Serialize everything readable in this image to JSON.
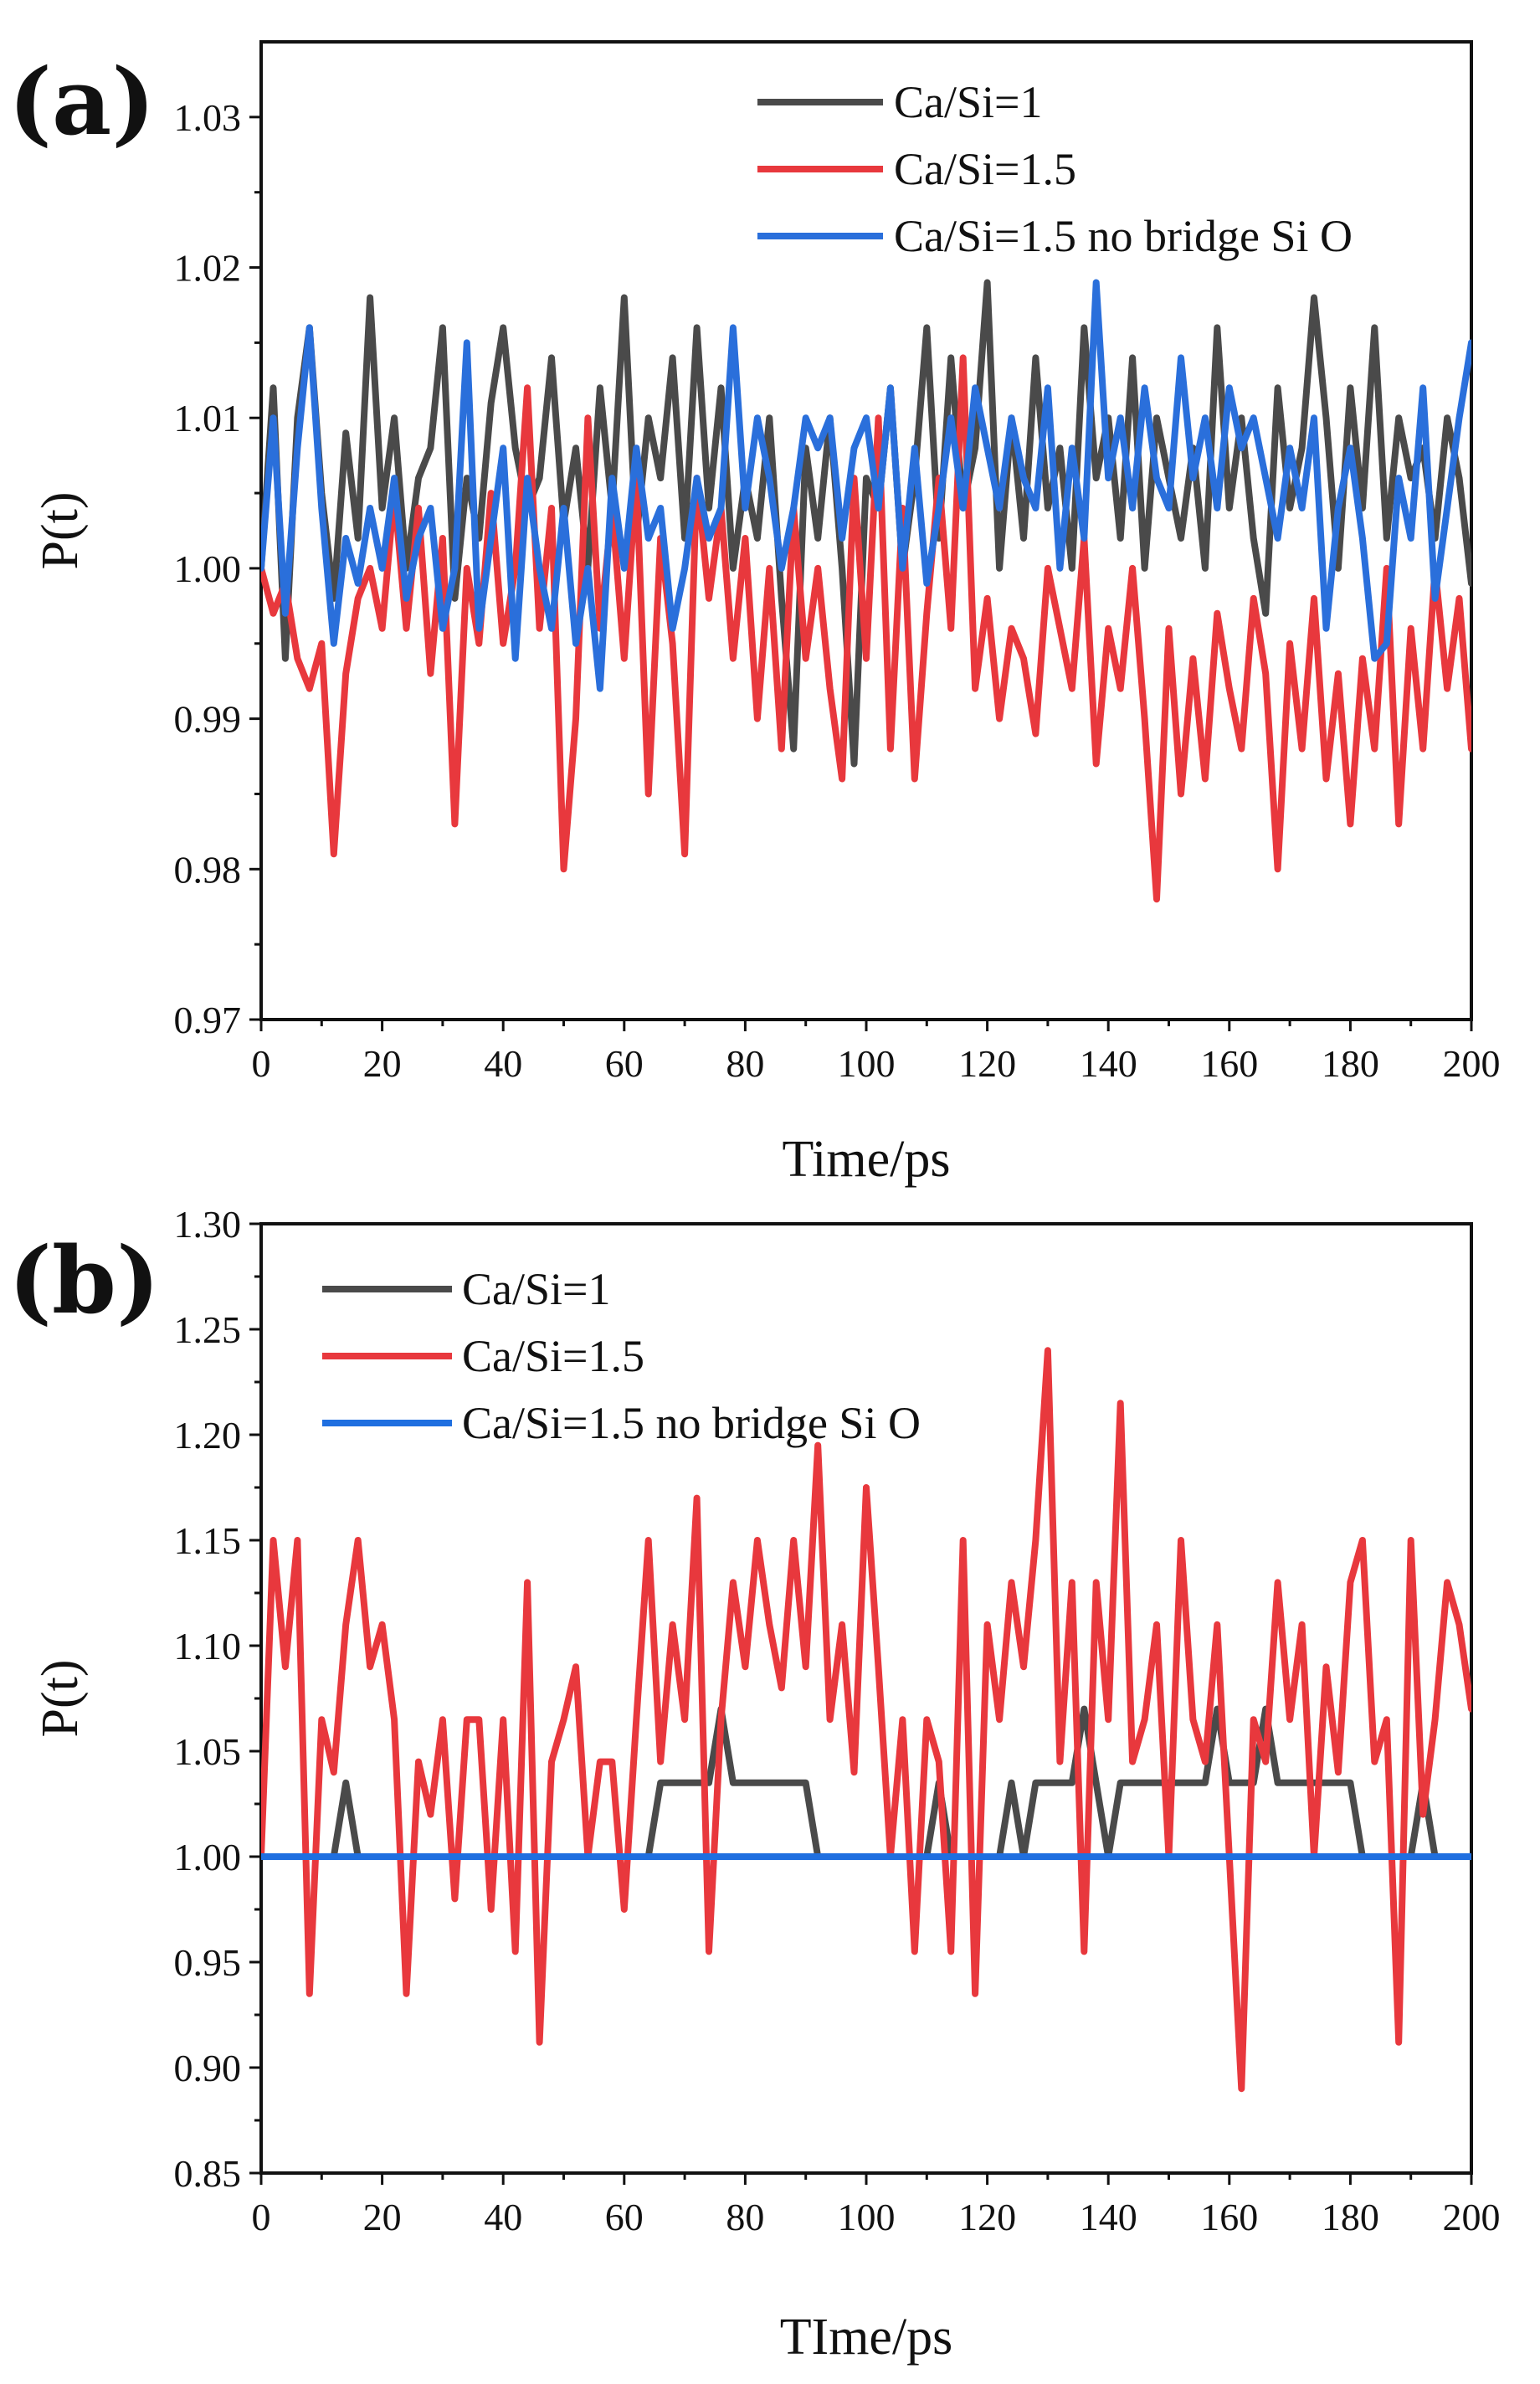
{
  "chart_data": [
    {
      "type": "line",
      "panel_label": "(a)",
      "xlabel": "Time/ps",
      "ylabel": "P(t)",
      "xlim": [
        0,
        200
      ],
      "ylim": [
        0.97,
        1.035
      ],
      "xticks": [
        0,
        20,
        40,
        60,
        80,
        100,
        120,
        140,
        160,
        180,
        200
      ],
      "yticks": [
        0.97,
        0.98,
        0.99,
        1.0,
        1.01,
        1.02,
        1.03
      ],
      "ytick_labels": [
        "0.97",
        "0.98",
        "0.99",
        "1.00",
        "1.01",
        "1.02",
        "1.03"
      ],
      "legend_position": "top-right",
      "x": [
        0,
        2,
        4,
        6,
        8,
        10,
        12,
        14,
        16,
        18,
        20,
        22,
        24,
        26,
        28,
        30,
        32,
        34,
        36,
        38,
        40,
        42,
        44,
        46,
        48,
        50,
        52,
        54,
        56,
        58,
        60,
        62,
        64,
        66,
        68,
        70,
        72,
        74,
        76,
        78,
        80,
        82,
        84,
        86,
        88,
        90,
        92,
        94,
        96,
        98,
        100,
        102,
        104,
        106,
        108,
        110,
        112,
        114,
        116,
        118,
        120,
        122,
        124,
        126,
        128,
        130,
        132,
        134,
        136,
        138,
        140,
        142,
        144,
        146,
        148,
        150,
        152,
        154,
        156,
        158,
        160,
        162,
        164,
        166,
        168,
        170,
        172,
        174,
        176,
        178,
        180,
        182,
        184,
        186,
        188,
        190,
        192,
        194,
        196,
        198,
        200
      ],
      "series": [
        {
          "name": "Ca/Si=1",
          "color": "#4a4a4a",
          "values": [
            1.0,
            1.012,
            0.994,
            1.01,
            1.016,
            1.005,
            0.998,
            1.009,
            1.002,
            1.018,
            1.004,
            1.01,
            1.0,
            1.006,
            1.008,
            1.016,
            0.998,
            1.006,
            1.002,
            1.011,
            1.016,
            1.008,
            1.004,
            1.006,
            1.014,
            1.003,
            1.008,
            1.0,
            1.012,
            1.004,
            1.018,
            1.002,
            1.01,
            1.006,
            1.014,
            1.002,
            1.016,
            1.004,
            1.012,
            1.0,
            1.006,
            1.002,
            1.01,
            0.998,
            0.988,
            1.008,
            1.002,
            1.01,
            1.0,
            0.987,
            1.006,
            1.004,
            1.012,
            1.0,
            1.006,
            1.016,
            1.002,
            1.014,
            1.004,
            1.008,
            1.019,
            1.0,
            1.01,
            1.002,
            1.014,
            1.004,
            1.008,
            1.0,
            1.016,
            1.006,
            1.01,
            1.002,
            1.014,
            1.0,
            1.01,
            1.006,
            1.002,
            1.008,
            1.0,
            1.016,
            1.004,
            1.01,
            1.002,
            0.997,
            1.012,
            1.004,
            1.008,
            1.018,
            1.01,
            1.0,
            1.012,
            1.004,
            1.016,
            1.002,
            1.01,
            1.006,
            1.008,
            1.002,
            1.01,
            1.006,
            0.999
          ]
        },
        {
          "name": "Ca/Si=1.5",
          "color": "#e8383d",
          "values": [
            1.0,
            0.997,
            0.999,
            0.994,
            0.992,
            0.995,
            0.981,
            0.993,
            0.998,
            1.0,
            0.996,
            1.005,
            0.996,
            1.004,
            0.993,
            1.002,
            0.983,
            1.0,
            0.995,
            1.005,
            0.995,
            1.0,
            1.012,
            0.996,
            1.004,
            0.98,
            0.99,
            1.01,
            0.996,
            1.004,
            0.994,
            1.006,
            0.985,
            1.002,
            0.995,
            0.981,
            1.006,
            0.998,
            1.004,
            0.994,
            1.002,
            0.99,
            1.0,
            0.988,
            1.004,
            0.994,
            1.0,
            0.992,
            0.986,
            1.006,
            0.994,
            1.01,
            0.988,
            1.004,
            0.986,
            0.997,
            1.006,
            0.996,
            1.014,
            0.992,
            0.998,
            0.99,
            0.996,
            0.994,
            0.989,
            1.0,
            0.996,
            0.992,
            1.002,
            0.987,
            0.996,
            0.992,
            1.0,
            0.99,
            0.978,
            0.996,
            0.985,
            0.994,
            0.986,
            0.997,
            0.992,
            0.988,
            0.998,
            0.993,
            0.98,
            0.995,
            0.988,
            0.998,
            0.986,
            0.993,
            0.983,
            0.994,
            0.988,
            1.0,
            0.983,
            0.996,
            0.988,
            1.0,
            0.992,
            0.998,
            0.988
          ]
        },
        {
          "name": "Ca/Si=1.5 no bridge Si O",
          "color": "#2a6fdb",
          "values": [
            1.0,
            1.01,
            0.997,
            1.008,
            1.016,
            1.004,
            0.995,
            1.002,
            0.999,
            1.004,
            1.0,
            1.006,
            0.998,
            1.002,
            1.004,
            0.996,
            1.0,
            1.015,
            0.996,
            1.002,
            1.008,
            0.994,
            1.006,
            1.0,
            0.996,
            1.004,
            0.995,
            1.0,
            0.992,
            1.006,
            1.0,
            1.008,
            1.002,
            1.004,
            0.996,
            1.0,
            1.006,
            1.002,
            1.004,
            1.016,
            1.004,
            1.01,
            1.006,
            1.0,
            1.004,
            1.01,
            1.008,
            1.01,
            1.002,
            1.008,
            1.01,
            1.004,
            1.012,
            1.0,
            1.008,
            0.999,
            1.004,
            1.01,
            1.004,
            1.012,
            1.008,
            1.004,
            1.01,
            1.006,
            1.004,
            1.012,
            1.0,
            1.008,
            1.002,
            1.019,
            1.006,
            1.01,
            1.004,
            1.012,
            1.006,
            1.004,
            1.014,
            1.006,
            1.01,
            1.004,
            1.012,
            1.008,
            1.01,
            1.006,
            1.002,
            1.008,
            1.004,
            1.01,
            0.996,
            1.004,
            1.008,
            1.002,
            0.994,
            0.995,
            1.006,
            1.002,
            1.012,
            0.998,
            1.004,
            1.01,
            1.015
          ]
        }
      ]
    },
    {
      "type": "line",
      "panel_label": "(b)",
      "xlabel": "TIme/ps",
      "ylabel": "P(t)",
      "xlim": [
        0,
        200
      ],
      "ylim": [
        0.85,
        1.3
      ],
      "xticks": [
        0,
        20,
        40,
        60,
        80,
        100,
        120,
        140,
        160,
        180,
        200
      ],
      "yticks": [
        0.85,
        0.9,
        0.95,
        1.0,
        1.05,
        1.1,
        1.15,
        1.2,
        1.25,
        1.3
      ],
      "ytick_labels": [
        "0.85",
        "0.90",
        "0.95",
        "1.00",
        "1.05",
        "1.10",
        "1.15",
        "1.20",
        "1.25",
        "1.30"
      ],
      "legend_position": "top-left",
      "x": [
        0,
        2,
        4,
        6,
        8,
        10,
        12,
        14,
        16,
        18,
        20,
        22,
        24,
        26,
        28,
        30,
        32,
        34,
        36,
        38,
        40,
        42,
        44,
        46,
        48,
        50,
        52,
        54,
        56,
        58,
        60,
        62,
        64,
        66,
        68,
        70,
        72,
        74,
        76,
        78,
        80,
        82,
        84,
        86,
        88,
        90,
        92,
        94,
        96,
        98,
        100,
        102,
        104,
        106,
        108,
        110,
        112,
        114,
        116,
        118,
        120,
        122,
        124,
        126,
        128,
        130,
        132,
        134,
        136,
        138,
        140,
        142,
        144,
        146,
        148,
        150,
        152,
        154,
        156,
        158,
        160,
        162,
        164,
        166,
        168,
        170,
        172,
        174,
        176,
        178,
        180,
        182,
        184,
        186,
        188,
        190,
        192,
        194,
        196,
        198,
        200
      ],
      "series": [
        {
          "name": "Ca/Si=1",
          "color": "#4a4a4a",
          "values": [
            1.0,
            1.0,
            1.0,
            1.0,
            1.0,
            1.0,
            1.0,
            1.035,
            1.0,
            1.0,
            1.0,
            1.0,
            1.0,
            1.0,
            1.0,
            1.0,
            1.0,
            1.0,
            1.0,
            1.0,
            1.0,
            1.0,
            1.0,
            1.0,
            1.0,
            1.0,
            1.0,
            1.0,
            1.0,
            1.0,
            1.0,
            1.0,
            1.0,
            1.035,
            1.035,
            1.035,
            1.035,
            1.035,
            1.07,
            1.035,
            1.035,
            1.035,
            1.035,
            1.035,
            1.035,
            1.035,
            1.0,
            1.0,
            1.0,
            1.0,
            1.0,
            1.0,
            1.0,
            1.0,
            1.0,
            1.0,
            1.035,
            1.0,
            1.0,
            1.0,
            1.0,
            1.0,
            1.035,
            1.0,
            1.035,
            1.035,
            1.035,
            1.035,
            1.07,
            1.035,
            1.0,
            1.035,
            1.035,
            1.035,
            1.035,
            1.035,
            1.035,
            1.035,
            1.035,
            1.07,
            1.035,
            1.035,
            1.035,
            1.07,
            1.035,
            1.035,
            1.035,
            1.035,
            1.035,
            1.035,
            1.035,
            1.0,
            1.0,
            1.0,
            1.0,
            1.0,
            1.035,
            1.0,
            1.0,
            1.0,
            1.0
          ]
        },
        {
          "name": "Ca/Si=1.5",
          "color": "#e8383d",
          "values": [
            1.0,
            1.15,
            1.09,
            1.15,
            0.935,
            1.065,
            1.04,
            1.11,
            1.15,
            1.09,
            1.11,
            1.065,
            0.935,
            1.045,
            1.02,
            1.065,
            0.98,
            1.065,
            1.065,
            0.975,
            1.065,
            0.955,
            1.13,
            0.912,
            1.045,
            1.065,
            1.09,
            1.0,
            1.045,
            1.045,
            0.975,
            1.065,
            1.15,
            1.045,
            1.11,
            1.065,
            1.17,
            0.955,
            1.065,
            1.13,
            1.09,
            1.15,
            1.11,
            1.08,
            1.15,
            1.09,
            1.195,
            1.065,
            1.11,
            1.04,
            1.175,
            1.09,
            1.0,
            1.065,
            0.955,
            1.065,
            1.045,
            0.955,
            1.15,
            0.935,
            1.11,
            1.065,
            1.13,
            1.09,
            1.15,
            1.24,
            1.045,
            1.13,
            0.955,
            1.13,
            1.065,
            1.215,
            1.045,
            1.065,
            1.11,
            1.0,
            1.15,
            1.065,
            1.045,
            1.11,
            1.0,
            0.89,
            1.065,
            1.045,
            1.13,
            1.065,
            1.11,
            1.0,
            1.09,
            1.04,
            1.13,
            1.15,
            1.045,
            1.065,
            0.912,
            1.15,
            1.02,
            1.065,
            1.13,
            1.11,
            1.07
          ]
        },
        {
          "name": "Ca/Si=1.5 no bridge Si O",
          "color": "#1f6fe0",
          "values": [
            1.0,
            1.0,
            1.0,
            1.0,
            1.0,
            1.0,
            1.0,
            1.0,
            1.0,
            1.0,
            1.0,
            1.0,
            1.0,
            1.0,
            1.0,
            1.0,
            1.0,
            1.0,
            1.0,
            1.0,
            1.0,
            1.0,
            1.0,
            1.0,
            1.0,
            1.0,
            1.0,
            1.0,
            1.0,
            1.0,
            1.0,
            1.0,
            1.0,
            1.0,
            1.0,
            1.0,
            1.0,
            1.0,
            1.0,
            1.0,
            1.0,
            1.0,
            1.0,
            1.0,
            1.0,
            1.0,
            1.0,
            1.0,
            1.0,
            1.0,
            1.0,
            1.0,
            1.0,
            1.0,
            1.0,
            1.0,
            1.0,
            1.0,
            1.0,
            1.0,
            1.0,
            1.0,
            1.0,
            1.0,
            1.0,
            1.0,
            1.0,
            1.0,
            1.0,
            1.0,
            1.0,
            1.0,
            1.0,
            1.0,
            1.0,
            1.0,
            1.0,
            1.0,
            1.0,
            1.0,
            1.0,
            1.0,
            1.0,
            1.0,
            1.0,
            1.0,
            1.0,
            1.0,
            1.0,
            1.0,
            1.0,
            1.0,
            1.0,
            1.0,
            1.0,
            1.0,
            1.0,
            1.0,
            1.0,
            1.0,
            1.0
          ]
        }
      ]
    }
  ]
}
